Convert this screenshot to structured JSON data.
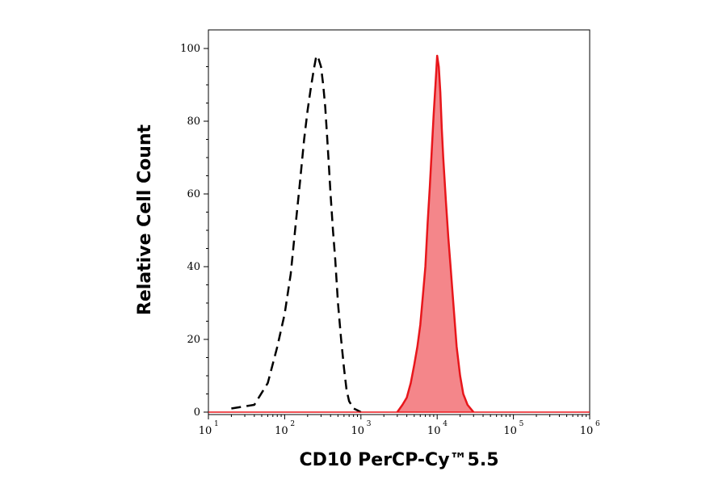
{
  "chart_data": {
    "type": "area",
    "title": "",
    "xlabel": "CD10 PerCP-Cy™5.5",
    "ylabel": "Relative Cell Count",
    "x_scale": "log",
    "xlim": [
      10,
      1000000
    ],
    "ylim": [
      0,
      100
    ],
    "x_ticks": [
      {
        "base": "10",
        "exp": "1"
      },
      {
        "base": "10",
        "exp": "2"
      },
      {
        "base": "10",
        "exp": "3"
      },
      {
        "base": "10",
        "exp": "4"
      },
      {
        "base": "10",
        "exp": "5"
      },
      {
        "base": "10",
        "exp": "6"
      }
    ],
    "y_ticks": [
      "0",
      "20",
      "40",
      "60",
      "80",
      "100"
    ],
    "grid": false,
    "series": [
      {
        "style": "dashed-line",
        "color": "#000000",
        "x": [
          20,
          40,
          60,
          80,
          100,
          120,
          140,
          160,
          180,
          200,
          220,
          240,
          260,
          280,
          300,
          320,
          340,
          360,
          380,
          400,
          430,
          460,
          500,
          550,
          600,
          650,
          700,
          800,
          900,
          1000
        ],
        "values": [
          1,
          2,
          8,
          18,
          27,
          38,
          52,
          64,
          75,
          83,
          89,
          94,
          98,
          97,
          95,
          90,
          84,
          76,
          68,
          60,
          50,
          42,
          30,
          20,
          12,
          6,
          3,
          1,
          0.5,
          0
        ]
      },
      {
        "style": "filled-area",
        "color": "#e8161b",
        "fill": "#f4868a",
        "x": [
          3000,
          3500,
          4000,
          4500,
          5000,
          5500,
          6000,
          6500,
          7000,
          7500,
          8000,
          8500,
          9000,
          9500,
          10000,
          10500,
          11000,
          11500,
          12000,
          13000,
          14000,
          15000,
          16000,
          18000,
          20000,
          22000,
          25000,
          30000
        ],
        "values": [
          0,
          2,
          4,
          8,
          13,
          18,
          24,
          32,
          40,
          52,
          62,
          72,
          82,
          90,
          98,
          95,
          88,
          78,
          70,
          58,
          48,
          40,
          32,
          18,
          10,
          5,
          2,
          0
        ]
      }
    ]
  }
}
